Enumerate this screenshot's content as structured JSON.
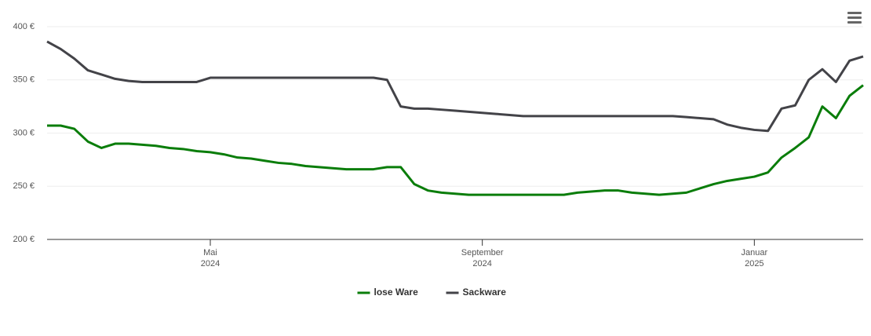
{
  "chart_data": {
    "type": "line",
    "categories": [
      null,
      null,
      null,
      null,
      null,
      null,
      null,
      null,
      null,
      null,
      null,
      null,
      "Mai 2024",
      null,
      null,
      null,
      null,
      null,
      null,
      null,
      null,
      null,
      null,
      null,
      null,
      null,
      null,
      null,
      null,
      null,
      null,
      null,
      "September 2024",
      null,
      null,
      null,
      null,
      null,
      null,
      null,
      null,
      null,
      null,
      null,
      null,
      null,
      null,
      null,
      null,
      null,
      null,
      null,
      "Januar 2025",
      null,
      null,
      null,
      null,
      null,
      null,
      null,
      null
    ],
    "series": [
      {
        "name": "lose Ware",
        "color": "#0a7d0a",
        "values": [
          307,
          307,
          304,
          292,
          286,
          290,
          290,
          289,
          288,
          286,
          285,
          283,
          282,
          280,
          277,
          276,
          274,
          272,
          271,
          269,
          268,
          267,
          266,
          266,
          266,
          268,
          268,
          252,
          246,
          244,
          243,
          242,
          242,
          242,
          242,
          242,
          242,
          242,
          242,
          244,
          245,
          246,
          246,
          244,
          243,
          242,
          243,
          244,
          248,
          252,
          255,
          257,
          259,
          263,
          277,
          286,
          296,
          325,
          314,
          335,
          345
        ]
      },
      {
        "name": "Sackware",
        "color": "#434348",
        "values": [
          386,
          379,
          370,
          359,
          355,
          351,
          349,
          348,
          348,
          348,
          348,
          348,
          352,
          352,
          352,
          352,
          352,
          352,
          352,
          352,
          352,
          352,
          352,
          352,
          352,
          350,
          325,
          323,
          323,
          322,
          321,
          320,
          319,
          318,
          317,
          316,
          316,
          316,
          316,
          316,
          316,
          316,
          316,
          316,
          316,
          316,
          316,
          315,
          314,
          313,
          308,
          305,
          303,
          302,
          323,
          326,
          350,
          360,
          348,
          368,
          372
        ]
      }
    ],
    "ylim": [
      200,
      400
    ],
    "yticks": [
      {
        "value": 200,
        "label": "200 €"
      },
      {
        "value": 250,
        "label": "250 €"
      },
      {
        "value": 300,
        "label": "300 €"
      },
      {
        "value": 350,
        "label": "350 €"
      },
      {
        "value": 400,
        "label": "400 €"
      }
    ],
    "grid": true
  }
}
